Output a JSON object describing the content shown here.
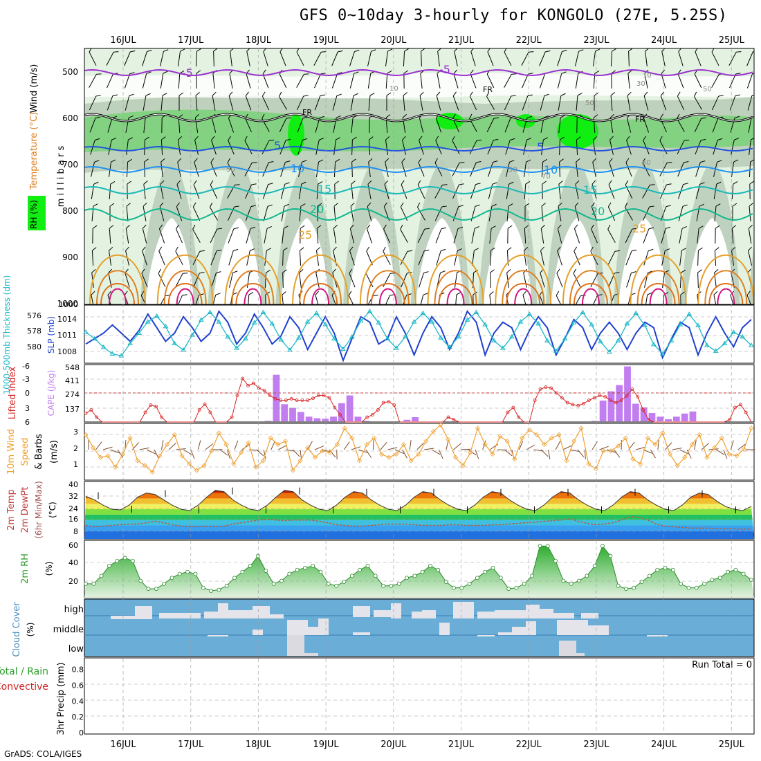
{
  "title": "GFS 0~10day 3-hourly for KONGOLO (27E, 5.25S)",
  "footer": "GrADS: COLA/IGES",
  "colors": {
    "bg": "#ffffff",
    "grid": "#9a9a9a",
    "rh_light": "#e4f2e2",
    "rh_mid": "#b9cdb8",
    "rh_green": "#6fd26f",
    "rh_bright": "#11ee11",
    "temp_neg": "#9a2fd0",
    "temp_5": "#2255dd",
    "temp_10": "#1e90f0",
    "temp_15": "#18b8b8",
    "temp_20": "#11b88e",
    "temp_25": "#e6a02a",
    "temp_30": "#e07f1f",
    "temp_35": "#e0701a",
    "temp_hot": "#d4127c",
    "slp": "#1f3fcf",
    "thick": "#18b8c8",
    "li": "#d82020",
    "cape": "#c27ef0",
    "wind10": "#f0a030",
    "barb": "#7a4a2a",
    "rh2m": "#2fae2f",
    "cloud_bg": "#6aaed8",
    "cloud_fg": "#e4e4ea",
    "run_total": "#000000"
  },
  "time_axis": {
    "days": [
      "16JUL",
      "17JUL",
      "18JUL",
      "19JUL",
      "20JUL",
      "21JUL",
      "22JUL",
      "23JUL",
      "24JUL",
      "25JUL"
    ]
  },
  "chart_data": [
    {
      "name": "upper-air",
      "type": "heatmap",
      "ylabel": "m i l l i b a r s",
      "yticks": [
        "500",
        "600",
        "700",
        "800",
        "900",
        "1000"
      ],
      "left_labels": [
        "Wind (m/s)",
        "Temperature (°C)",
        "RH (%)"
      ],
      "isotherm_labels": [
        "-5",
        "-5",
        "FR",
        "FR",
        "FR",
        "5",
        "5",
        "10",
        "10",
        "15",
        "15",
        "20",
        "20",
        "25",
        "25"
      ],
      "rh_labels": [
        "10",
        "10",
        "30",
        "50",
        "50",
        "50",
        "50",
        "50",
        "70"
      ]
    },
    {
      "name": "slp-thickness",
      "type": "line",
      "ylabel_left": "1000-500mb Thickness (dm)",
      "yticks_left": [
        "580",
        "578",
        "576"
      ],
      "ylabel_right": "SLP (mb)",
      "yticks_right": [
        "1014",
        "1011",
        "1008"
      ],
      "slp": [
        1009,
        1010,
        1011,
        1012.5,
        1011,
        1009.5,
        1011.5,
        1014.5,
        1012,
        1009.5,
        1011,
        1014,
        1012,
        1009.5,
        1011,
        1015,
        1013,
        1009,
        1011,
        1014.5,
        1012,
        1009,
        1010.5,
        1014,
        1012,
        1008,
        1011,
        1014,
        1011,
        1006,
        1010,
        1014,
        1013,
        1009,
        1010,
        1014,
        1011,
        1007,
        1011,
        1014,
        1012,
        1008,
        1011,
        1015,
        1013,
        1007,
        1011,
        1013,
        1012,
        1008,
        1011.5,
        1014,
        1012,
        1007,
        1010,
        1013.5,
        1012,
        1008,
        1011,
        1013,
        1011,
        1008,
        1011,
        1013,
        1012,
        1006.5,
        1010,
        1013,
        1012,
        1007,
        1011,
        1014,
        1011,
        1008.5,
        1012,
        1013.5
      ],
      "thickness": [
        578.5,
        577.8,
        576.9,
        576.2,
        576.0,
        577.3,
        578.4,
        579.6,
        580.2,
        579.1,
        577.3,
        576.6,
        578.2,
        579.8,
        580.6,
        579.6,
        578.0,
        576.8,
        577.8,
        579.5,
        580.6,
        579.4,
        577.7,
        576.6,
        577.9,
        579.6,
        580.5,
        579.3,
        577.8,
        576.7,
        578.0,
        579.7,
        580.7,
        579.5,
        577.8,
        576.8,
        578.0,
        579.6,
        580.5,
        579.6,
        577.9,
        576.9,
        578.0,
        579.8,
        580.6,
        579.3,
        577.6,
        576.8,
        578.0,
        579.6,
        580.4,
        579.4,
        577.6,
        576.5,
        577.8,
        579.5,
        580.6,
        579.3,
        577.5,
        576.4,
        577.6,
        579.4,
        580.5,
        579.2,
        577.2,
        576.2,
        577.6,
        579.3,
        580.4,
        579.2,
        577.1,
        576.5,
        577.3,
        578.5,
        578.0,
        577.1
      ]
    },
    {
      "name": "li-cape",
      "type": "bar",
      "ylabel_left": "Lifted Index",
      "yticks_left": [
        "-6",
        "-3",
        "0",
        "3",
        "6"
      ],
      "ylabel_right": "CAPE (J/kg)",
      "yticks_right": [
        "548",
        "411",
        "274",
        "137"
      ],
      "cape": [
        0,
        0,
        0,
        0,
        0,
        0,
        0,
        0,
        0,
        0,
        0,
        0,
        0,
        0,
        0,
        0,
        0,
        0,
        0,
        0,
        0,
        0,
        5,
        450,
        165,
        130,
        90,
        45,
        30,
        25,
        45,
        175,
        250,
        45,
        5,
        0,
        0,
        0,
        0,
        15,
        40,
        0,
        0,
        0,
        0,
        0,
        0,
        0,
        0,
        0,
        0,
        0,
        0,
        0,
        0,
        0,
        0,
        0,
        0,
        0,
        0,
        0,
        5,
        200,
        290,
        350,
        530,
        170,
        135,
        80,
        45,
        20,
        45,
        75,
        95,
        0,
        0,
        0,
        0,
        0,
        0,
        0
      ],
      "li": [
        4.2,
        3.5,
        5,
        6,
        6,
        6,
        6,
        6,
        6,
        6,
        6,
        4,
        2.5,
        2.8,
        5,
        6,
        6,
        6,
        6,
        6,
        6,
        3.5,
        2.3,
        4,
        6,
        6,
        6,
        5,
        0.5,
        -3,
        -1.5,
        -2,
        -1,
        -0.5,
        0.5,
        1.2,
        1.5,
        1.5,
        1.2,
        1.5,
        1.5,
        1.5,
        1.1,
        0.5,
        0.5,
        1,
        3,
        4.5,
        6,
        6,
        6,
        6,
        5,
        4.5,
        3.5,
        2,
        1.8,
        2.5,
        6,
        6,
        6,
        6,
        6,
        6,
        6,
        6,
        6,
        5,
        5.5,
        6,
        6,
        6,
        6,
        6,
        6,
        6,
        6,
        6,
        4,
        3,
        5,
        6,
        6,
        1.5,
        -0.8,
        -1.2,
        -1.0,
        0,
        1,
        2,
        2.4,
        2.6,
        2.2,
        1.5,
        1,
        0.5,
        0.8,
        1.5,
        2,
        1.5,
        0.6,
        -0.8,
        0.8,
        3.5,
        5.5,
        6,
        6,
        6,
        6,
        6,
        6,
        6,
        6,
        6,
        6,
        6,
        6,
        6,
        6,
        5.5,
        3,
        2.4,
        4,
        6
      ],
      "zero_line": true
    },
    {
      "name": "wind10m",
      "type": "line",
      "ylabel": "10m Wind Speed & Barbs (m/s)",
      "yticks": [
        "3",
        "2",
        "1"
      ],
      "values": [
        2.8,
        2.0,
        1.4,
        1.5,
        0.8,
        1.6,
        2.6,
        1.2,
        0.9,
        0.5,
        1.5,
        2.2,
        2.8,
        1.5,
        1.0,
        0.6,
        0.9,
        1.8,
        2.9,
        2.2,
        1.0,
        1.7,
        2.3,
        0.8,
        1.2,
        2.6,
        2.2,
        2.4,
        0.6,
        1.2,
        2.0,
        1.4,
        1.8,
        1.7,
        2.2,
        3.2,
        2.6,
        1.2,
        2.2,
        2.6,
        1.6,
        1.4,
        1.6,
        2.2,
        1.2,
        1.6,
        2.4,
        3.0,
        3.4,
        2.5,
        1.4,
        0.9,
        1.7,
        3.2,
        2.2,
        1.6,
        2.7,
        2.4,
        1.3,
        2.6,
        3.1,
        2.8,
        2.2,
        2.6,
        2.8,
        1.2,
        2.4,
        3.2,
        1.0,
        0.7,
        1.8,
        1.8,
        2.1,
        2.6,
        1.3,
        1.0,
        2.6,
        2.2,
        2.9,
        1.6,
        0.9,
        1.4,
        2.2,
        2.8,
        1.4,
        2.0,
        2.6,
        1.6,
        1.5,
        1.9,
        3.2
      ]
    },
    {
      "name": "temp2m",
      "type": "area",
      "ylabel": "2m Temp / 2m DewPt (6hr Min/Max) (°C)",
      "yticks": [
        "40",
        "32",
        "24",
        "16",
        "8"
      ],
      "temp": [
        31.5,
        29,
        25,
        22,
        21.5,
        25,
        31,
        34,
        33,
        29,
        25,
        22,
        21,
        25,
        31,
        36,
        35,
        29,
        25,
        22,
        21,
        25,
        31,
        36,
        35,
        29,
        25,
        22,
        21,
        25,
        31,
        35,
        34,
        29,
        25,
        22,
        21,
        25,
        31,
        35,
        34,
        29,
        25,
        22,
        21,
        25,
        31,
        35,
        34,
        29,
        25,
        22,
        21,
        25,
        31,
        35,
        34,
        29,
        25,
        22,
        21,
        25,
        31,
        35,
        34,
        29,
        25,
        22,
        21,
        25,
        31,
        34,
        33,
        28,
        24,
        22,
        21,
        24
      ],
      "dewpt": [
        10,
        9,
        9.5,
        10,
        10.5,
        11,
        11,
        12,
        13,
        12,
        10.5,
        9.5,
        9,
        9,
        9.5,
        9,
        9.5,
        11,
        12,
        13,
        14,
        14.5,
        14,
        13.5,
        14,
        14,
        14,
        13,
        12,
        10.5,
        10,
        9.5,
        9.5,
        10,
        10.5,
        11,
        11,
        11,
        10.5,
        10,
        10,
        10,
        10.5,
        10.5,
        10,
        10,
        10,
        10.5,
        10.5,
        11,
        11.5,
        12,
        12.5,
        13,
        13.5,
        14,
        15,
        13,
        11.5,
        10.5,
        11,
        12,
        14,
        16.5,
        16,
        14,
        11,
        9.5,
        9,
        8.5,
        8,
        8,
        8,
        7.5,
        7.5,
        7.5,
        7.2,
        7.2
      ]
    },
    {
      "name": "rh2m",
      "type": "area",
      "ylabel": "2m RH (%)",
      "yticks": [
        "60",
        "40",
        "20"
      ],
      "values": [
        22,
        22,
        30,
        40,
        45,
        48,
        45,
        25,
        17,
        17,
        22,
        28,
        32,
        34,
        32,
        18,
        15,
        16,
        20,
        28,
        34,
        40,
        50,
        35,
        22,
        25,
        32,
        36,
        38,
        40,
        34,
        22,
        20,
        24,
        30,
        36,
        40,
        30,
        20,
        20,
        22,
        28,
        30,
        34,
        40,
        36,
        24,
        18,
        18,
        22,
        28,
        34,
        38,
        28,
        17,
        18,
        22,
        30,
        60,
        60,
        45,
        25,
        22,
        25,
        30,
        40,
        60,
        50,
        20,
        17,
        18,
        24,
        30,
        36,
        38,
        36,
        22,
        18,
        18,
        22,
        26,
        28,
        34,
        36,
        32,
        26
      ]
    },
    {
      "name": "cloud-cover",
      "type": "bar",
      "ylabel": "Cloud Cover (%)",
      "levels": [
        "high",
        "middle",
        "low"
      ]
    },
    {
      "name": "precip",
      "type": "bar",
      "ylabel": "3hr Precip (mm)",
      "side_labels": [
        "Total / Rain",
        "Convective"
      ],
      "yticks": [
        "0.8",
        "0.6",
        "0.4",
        "0.2",
        "0"
      ],
      "run_total": "Run Total = 0",
      "values": []
    }
  ]
}
